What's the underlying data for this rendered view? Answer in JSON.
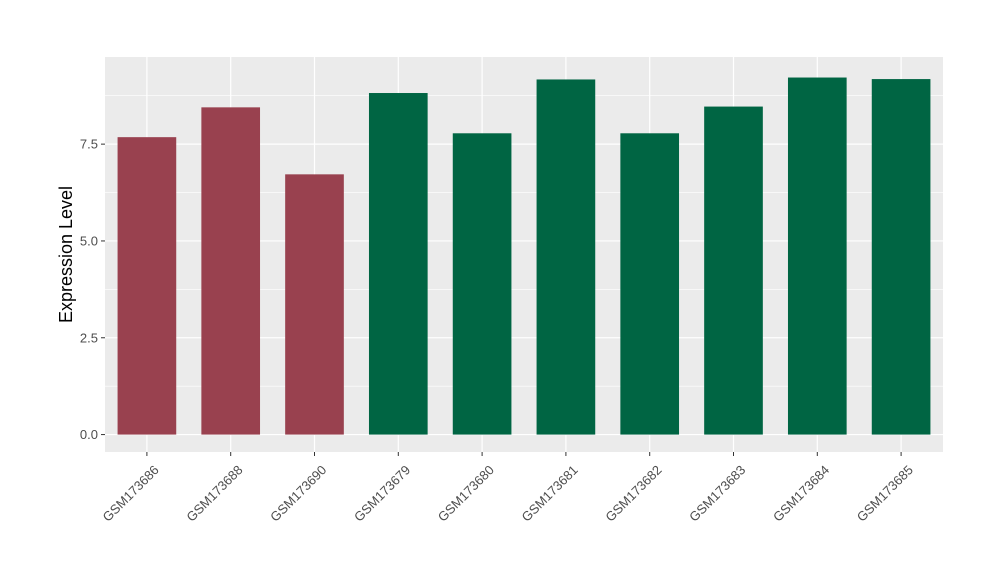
{
  "chart_data": {
    "type": "bar",
    "title": "",
    "xlabel": "",
    "ylabel": "Expression Level",
    "categories": [
      "GSM173686",
      "GSM173688",
      "GSM173690",
      "GSM173679",
      "GSM173680",
      "GSM173681",
      "GSM173682",
      "GSM173683",
      "GSM173684",
      "GSM173685"
    ],
    "values": [
      7.68,
      8.45,
      6.72,
      8.82,
      7.78,
      9.17,
      7.78,
      8.47,
      9.22,
      9.18
    ],
    "bar_colors": [
      "#99414f",
      "#99414f",
      "#99414f",
      "#006543",
      "#006543",
      "#006543",
      "#006543",
      "#006543",
      "#006543",
      "#006543"
    ],
    "yticks": [
      0.0,
      2.5,
      5.0,
      7.5
    ],
    "ytick_labels": [
      "0.0",
      "2.5",
      "5.0",
      "7.5"
    ],
    "ylim": [
      -0.45,
      9.75
    ],
    "grid": true,
    "legend": "none",
    "panel_background": "#ebebeb",
    "grid_color": "#ffffff"
  }
}
